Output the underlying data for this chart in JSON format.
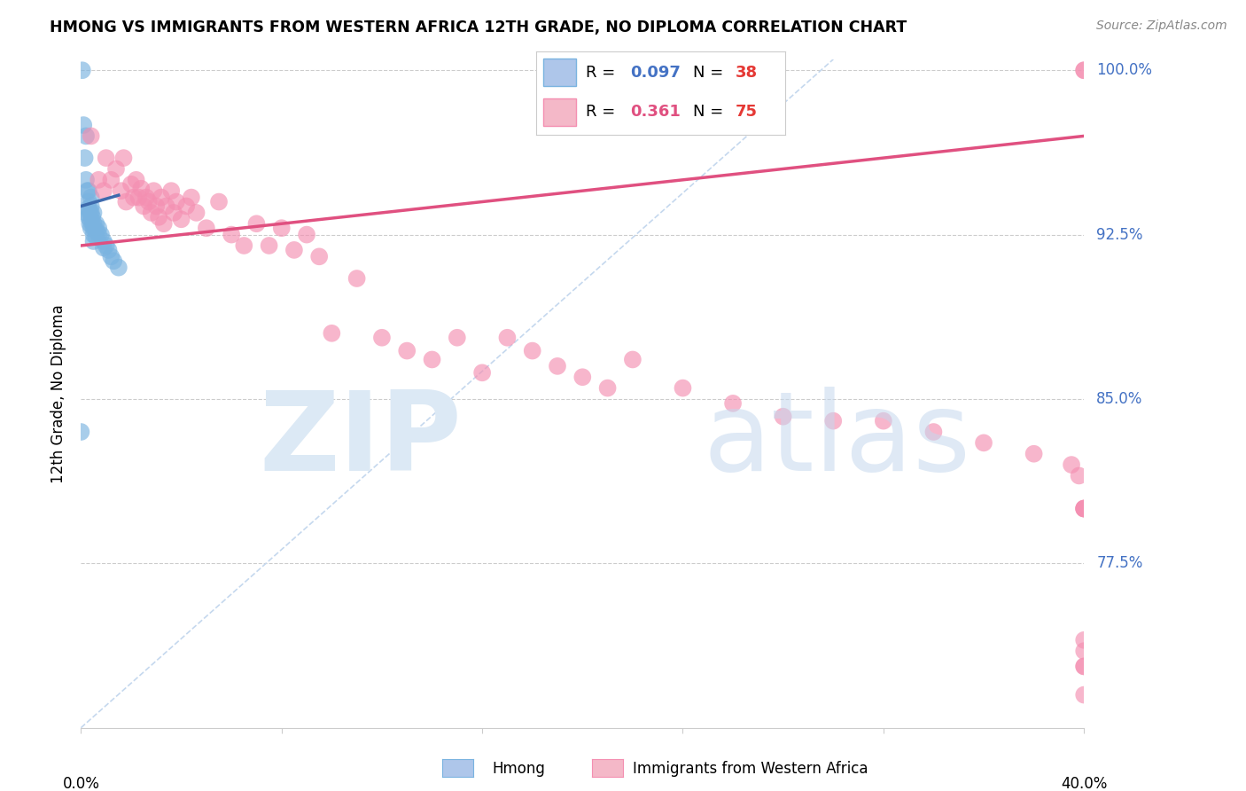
{
  "title": "HMONG VS IMMIGRANTS FROM WESTERN AFRICA 12TH GRADE, NO DIPLOMA CORRELATION CHART",
  "source": "Source: ZipAtlas.com",
  "ylabel": "12th Grade, No Diploma",
  "x_min": 0.0,
  "x_max": 0.4,
  "y_min": 0.7,
  "y_max": 1.005,
  "y_ticks": [
    0.775,
    0.85,
    0.925,
    1.0
  ],
  "y_tick_labels": [
    "77.5%",
    "85.0%",
    "92.5%",
    "100.0%"
  ],
  "hmong_R": 0.097,
  "hmong_N": 38,
  "western_africa_R": 0.361,
  "western_africa_N": 75,
  "hmong_color": "#7ab3e0",
  "western_africa_color": "#f48fb1",
  "hmong_line_color": "#3d6aad",
  "western_africa_line_color": "#e05080",
  "diagonal_color": "#c5d8ee",
  "hmong_scatter_x": [
    0.0,
    0.0005,
    0.001,
    0.0015,
    0.002,
    0.002,
    0.002,
    0.0025,
    0.003,
    0.003,
    0.003,
    0.003,
    0.0035,
    0.0035,
    0.004,
    0.004,
    0.004,
    0.004,
    0.004,
    0.0045,
    0.005,
    0.005,
    0.005,
    0.005,
    0.005,
    0.006,
    0.006,
    0.006,
    0.007,
    0.007,
    0.008,
    0.009,
    0.009,
    0.01,
    0.011,
    0.012,
    0.013,
    0.015
  ],
  "hmong_scatter_y": [
    0.835,
    1.0,
    0.975,
    0.96,
    0.97,
    0.95,
    0.935,
    0.945,
    0.945,
    0.94,
    0.937,
    0.933,
    0.935,
    0.93,
    0.942,
    0.938,
    0.935,
    0.931,
    0.928,
    0.933,
    0.935,
    0.93,
    0.928,
    0.925,
    0.922,
    0.93,
    0.927,
    0.924,
    0.928,
    0.925,
    0.925,
    0.922,
    0.919,
    0.92,
    0.918,
    0.915,
    0.913,
    0.91
  ],
  "wa_scatter_x": [
    0.004,
    0.007,
    0.009,
    0.01,
    0.012,
    0.014,
    0.016,
    0.017,
    0.018,
    0.02,
    0.021,
    0.022,
    0.023,
    0.024,
    0.025,
    0.026,
    0.027,
    0.028,
    0.029,
    0.03,
    0.031,
    0.032,
    0.033,
    0.034,
    0.036,
    0.037,
    0.038,
    0.04,
    0.042,
    0.044,
    0.046,
    0.05,
    0.055,
    0.06,
    0.065,
    0.07,
    0.075,
    0.08,
    0.085,
    0.09,
    0.095,
    0.1,
    0.11,
    0.12,
    0.13,
    0.14,
    0.15,
    0.16,
    0.17,
    0.18,
    0.19,
    0.2,
    0.21,
    0.22,
    0.24,
    0.26,
    0.28,
    0.3,
    0.32,
    0.34,
    0.36,
    0.38,
    0.395,
    0.398,
    0.4,
    0.4,
    0.4,
    0.4,
    0.4,
    0.4,
    0.4,
    0.4,
    0.4,
    0.4,
    0.4
  ],
  "wa_scatter_y": [
    0.97,
    0.95,
    0.945,
    0.96,
    0.95,
    0.955,
    0.945,
    0.96,
    0.94,
    0.948,
    0.942,
    0.95,
    0.942,
    0.946,
    0.938,
    0.942,
    0.94,
    0.935,
    0.945,
    0.938,
    0.933,
    0.942,
    0.93,
    0.938,
    0.945,
    0.935,
    0.94,
    0.932,
    0.938,
    0.942,
    0.935,
    0.928,
    0.94,
    0.925,
    0.92,
    0.93,
    0.92,
    0.928,
    0.918,
    0.925,
    0.915,
    0.88,
    0.905,
    0.878,
    0.872,
    0.868,
    0.878,
    0.862,
    0.878,
    0.872,
    0.865,
    0.86,
    0.855,
    0.868,
    0.855,
    0.848,
    0.842,
    0.84,
    0.84,
    0.835,
    0.83,
    0.825,
    0.82,
    0.815,
    0.74,
    0.728,
    0.735,
    0.728,
    0.715,
    1.0,
    1.0,
    0.8,
    0.8,
    0.8,
    0.8
  ],
  "hmong_trend_x0": 0.0,
  "hmong_trend_x1": 0.015,
  "hmong_trend_y0": 0.938,
  "hmong_trend_y1": 0.943,
  "wa_trend_x0": 0.0,
  "wa_trend_x1": 0.4,
  "wa_trend_y0": 0.92,
  "wa_trend_y1": 0.97
}
